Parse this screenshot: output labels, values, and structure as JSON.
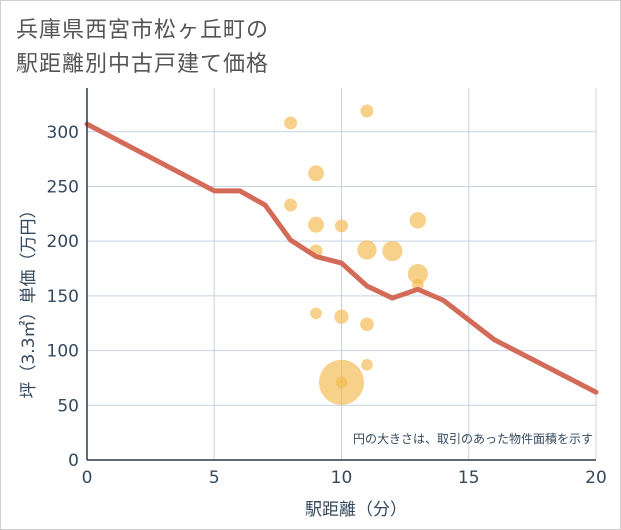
{
  "title_line1": "兵庫県西宮市松ヶ丘町の",
  "title_line2": "駅距離別中古戸建て価格",
  "chart_data": {
    "type": "scatter",
    "title": "兵庫県西宮市松ヶ丘町の駅距離別中古戸建て価格",
    "xlabel": "駅距離（分）",
    "ylabel": "坪（3.3㎡）単価（万円）",
    "xlim": [
      0,
      20
    ],
    "ylim": [
      0,
      340
    ],
    "xticks": [
      0,
      5,
      10,
      15,
      20
    ],
    "yticks": [
      0,
      50,
      100,
      150,
      200,
      250,
      300
    ],
    "grid": true,
    "note": "円の大きさは、取引のあった物件面積を示す",
    "colors": {
      "bubble": "#f3b94b",
      "line": "#d46a58"
    },
    "bubbles": [
      {
        "x": 8,
        "y": 308,
        "size": 1
      },
      {
        "x": 11,
        "y": 319,
        "size": 1
      },
      {
        "x": 9,
        "y": 262,
        "size": 1.5
      },
      {
        "x": 8,
        "y": 233,
        "size": 1
      },
      {
        "x": 9,
        "y": 215,
        "size": 1.5
      },
      {
        "x": 10,
        "y": 214,
        "size": 1
      },
      {
        "x": 13,
        "y": 219,
        "size": 1.6
      },
      {
        "x": 9,
        "y": 191,
        "size": 1
      },
      {
        "x": 11,
        "y": 192,
        "size": 2.2
      },
      {
        "x": 12,
        "y": 191,
        "size": 2.4
      },
      {
        "x": 13,
        "y": 170,
        "size": 2.4
      },
      {
        "x": 13,
        "y": 160,
        "size": 0.8
      },
      {
        "x": 9,
        "y": 134,
        "size": 0.8
      },
      {
        "x": 10,
        "y": 131,
        "size": 1.2
      },
      {
        "x": 11,
        "y": 124,
        "size": 1.1
      },
      {
        "x": 11,
        "y": 87,
        "size": 0.8
      },
      {
        "x": 10,
        "y": 71,
        "size": 12
      },
      {
        "x": 10,
        "y": 71,
        "size": 0.8
      }
    ],
    "trend": {
      "x": [
        0,
        5,
        6,
        7,
        8,
        9,
        10,
        11,
        12,
        13,
        14,
        16,
        20
      ],
      "y": [
        307,
        246,
        246,
        233,
        201,
        186,
        180,
        159,
        148,
        156,
        146,
        110,
        62
      ]
    }
  }
}
